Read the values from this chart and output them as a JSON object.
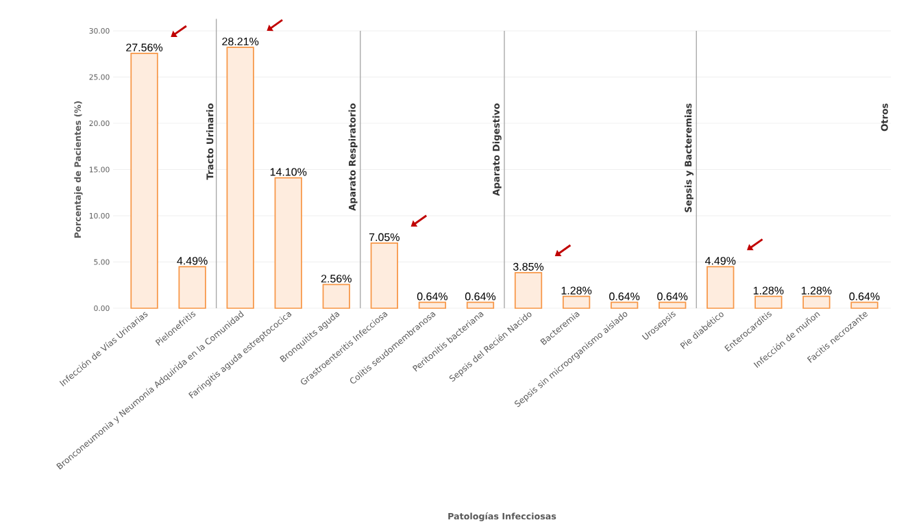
{
  "chart_data": {
    "type": "bar",
    "xlabel": "Patologías Infecciosas",
    "ylabel": "Porcentaje de Pacientes (%)",
    "categories": [
      "Infección de Vías Urinarias",
      "Pielonefritis",
      "Bronconeumonia y Neumonía Adquirida en la Comunidad",
      "Faringitis aguda estreptococica",
      "Bronquitits aguda",
      "Grastroenteritis Infecciosa",
      "Colitis seudomembranosa",
      "Peritonitis bacteriana",
      "Sepsis del Recién Nacido",
      "Bacteremia",
      "Sepsis sin microorganismo aislado",
      "Urosepsis",
      "Pie diabético",
      "Enterocarditis",
      "Infección de muñon",
      "Facitis necrozante"
    ],
    "values": [
      27.56,
      4.49,
      28.21,
      14.1,
      2.56,
      7.05,
      0.64,
      0.64,
      3.85,
      1.28,
      0.64,
      0.64,
      4.49,
      1.28,
      1.28,
      0.64
    ],
    "value_labels": [
      "27.56%",
      "4.49%",
      "28.21%",
      "14.10%",
      "2.56%",
      "7.05%",
      "0.64%",
      "0.64%",
      "3.85%",
      "1.28%",
      "0.64%",
      "0.64%",
      "4.49%",
      "1.28%",
      "1.28%",
      "0.64%"
    ],
    "color": "#f79646",
    "ylim": [
      0,
      30
    ],
    "yticks": [
      {
        "value": 0,
        "label": "0.00"
      },
      {
        "value": 5,
        "label": "5.00"
      },
      {
        "value": 10,
        "label": "10.00"
      },
      {
        "value": 15,
        "label": "15.00"
      },
      {
        "value": 20,
        "label": "20.00"
      },
      {
        "value": 25,
        "label": "25.00"
      },
      {
        "value": 30,
        "label": "30.00"
      }
    ],
    "grid": "y",
    "annotations": [
      "Tracto Urinario",
      "Aparato Respiratorio",
      "Aparato Digestivo",
      "Sepsis y Bacteremias",
      "Otros"
    ]
  }
}
